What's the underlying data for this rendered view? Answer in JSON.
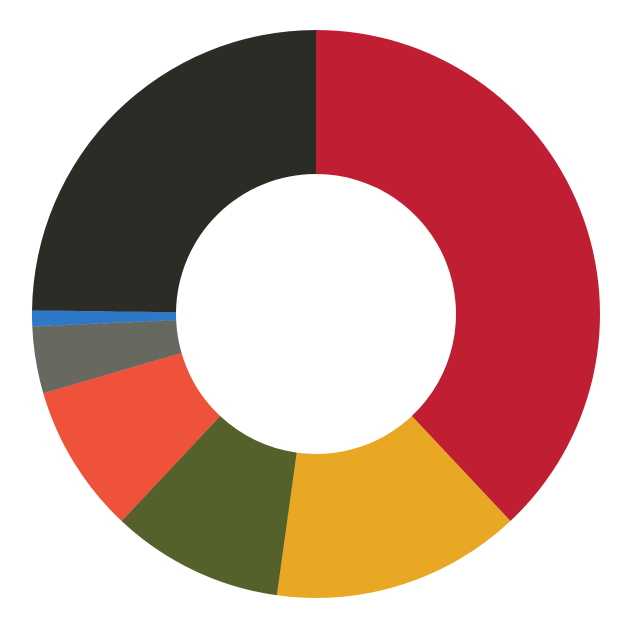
{
  "chart_data": {
    "type": "pie",
    "donut": true,
    "title": "",
    "legend": "none",
    "start_angle": "top, clockwise",
    "values": [
      38.0,
      14.2,
      9.8,
      8.5,
      3.8,
      0.9,
      24.8
    ],
    "colors": [
      "#C01F33",
      "#E9A823",
      "#55612A",
      "#EF523A",
      "#676860",
      "#2E78C8",
      "#2C2C27"
    ]
  }
}
